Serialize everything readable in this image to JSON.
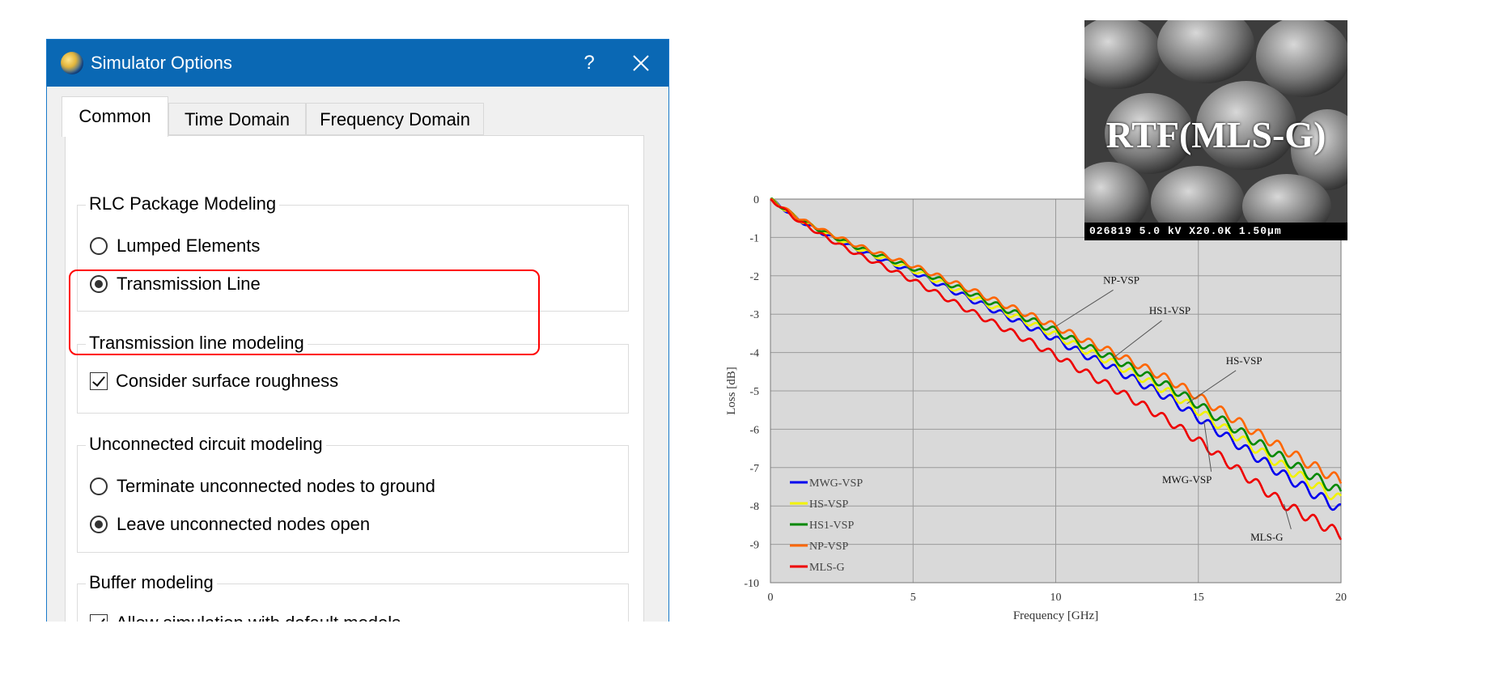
{
  "dialog": {
    "title": "Simulator Options",
    "help_label": "?",
    "tabs": [
      {
        "label": "Common",
        "active": true
      },
      {
        "label": "Time Domain",
        "active": false
      },
      {
        "label": "Frequency Domain",
        "active": false
      }
    ],
    "groups": {
      "rlc": {
        "title": "RLC Package Modeling",
        "options": [
          {
            "label": "Lumped Elements",
            "checked": false
          },
          {
            "label": "Transmission Line",
            "checked": true
          }
        ]
      },
      "tline": {
        "title": "Transmission line modeling",
        "checkbox": {
          "label": "Consider surface roughness",
          "checked": true
        }
      },
      "unconnected": {
        "title": "Unconnected circuit modeling",
        "options": [
          {
            "label": "Terminate unconnected nodes to ground",
            "checked": false
          },
          {
            "label": "Leave unconnected nodes open",
            "checked": true
          }
        ]
      },
      "buffer": {
        "title": "Buffer modeling",
        "checkbox": {
          "label": "Allow simulation with default models",
          "checked": true
        }
      }
    },
    "accent_color": "#0a68b4",
    "highlight_color": "#ff0000"
  },
  "inset": {
    "title": "RTF(MLS-G)",
    "caption": "026819 5.0 kV X20.0K 1.50µm"
  },
  "chart_data": {
    "type": "line",
    "title": "",
    "xlabel": "Frequency [GHz]",
    "ylabel": "Loss [dB]",
    "xlim": [
      0,
      20
    ],
    "ylim": [
      -10,
      0
    ],
    "xticks": [
      0,
      5,
      10,
      15,
      20
    ],
    "yticks": [
      0,
      -1,
      -2,
      -3,
      -4,
      -5,
      -6,
      -7,
      -8,
      -9,
      -10
    ],
    "grid": true,
    "legend_position": "bottom-left",
    "x": [
      0,
      1,
      2,
      3,
      4,
      5,
      6,
      7,
      8,
      9,
      10,
      11,
      12,
      13,
      14,
      15,
      16,
      17,
      18,
      19,
      20
    ],
    "series": [
      {
        "name": "MWG-VSP",
        "color": "#0000ee",
        "values": [
          0,
          -0.55,
          -0.95,
          -1.3,
          -1.6,
          -1.9,
          -2.25,
          -2.6,
          -2.95,
          -3.3,
          -3.65,
          -4.05,
          -4.4,
          -4.8,
          -5.2,
          -5.7,
          -6.2,
          -6.7,
          -7.2,
          -7.65,
          -8.1
        ]
      },
      {
        "name": "HS-VSP",
        "color": "#f2f200",
        "values": [
          0,
          -0.53,
          -0.92,
          -1.27,
          -1.56,
          -1.85,
          -2.18,
          -2.52,
          -2.87,
          -3.2,
          -3.54,
          -3.93,
          -4.27,
          -4.66,
          -5.05,
          -5.52,
          -6.02,
          -6.5,
          -6.98,
          -7.42,
          -7.85
        ]
      },
      {
        "name": "HS1-VSP",
        "color": "#008800",
        "values": [
          0,
          -0.52,
          -0.9,
          -1.24,
          -1.52,
          -1.8,
          -2.12,
          -2.45,
          -2.79,
          -3.11,
          -3.44,
          -3.82,
          -4.15,
          -4.53,
          -4.9,
          -5.36,
          -5.85,
          -6.32,
          -6.78,
          -7.22,
          -7.65
        ]
      },
      {
        "name": "NP-VSP",
        "color": "#ff6600",
        "values": [
          0,
          -0.5,
          -0.87,
          -1.2,
          -1.47,
          -1.74,
          -2.05,
          -2.36,
          -2.69,
          -3.0,
          -3.32,
          -3.68,
          -4.0,
          -4.36,
          -4.72,
          -5.15,
          -5.62,
          -6.08,
          -6.52,
          -6.95,
          -7.35
        ]
      },
      {
        "name": "MLS-G",
        "color": "#ee0000",
        "values": [
          0,
          -0.58,
          -1.02,
          -1.42,
          -1.76,
          -2.12,
          -2.52,
          -2.92,
          -3.3,
          -3.68,
          -4.08,
          -4.5,
          -4.92,
          -5.35,
          -5.8,
          -6.3,
          -6.85,
          -7.4,
          -7.95,
          -8.35,
          -8.75
        ]
      }
    ],
    "annotations": [
      {
        "text": "NP-VSP",
        "series": "NP-VSP"
      },
      {
        "text": "HS1-VSP",
        "series": "HS1-VSP"
      },
      {
        "text": "HS-VSP",
        "series": "HS-VSP"
      },
      {
        "text": "MWG-VSP",
        "series": "MWG-VSP"
      },
      {
        "text": "MLS-G",
        "series": "MLS-G"
      }
    ]
  }
}
